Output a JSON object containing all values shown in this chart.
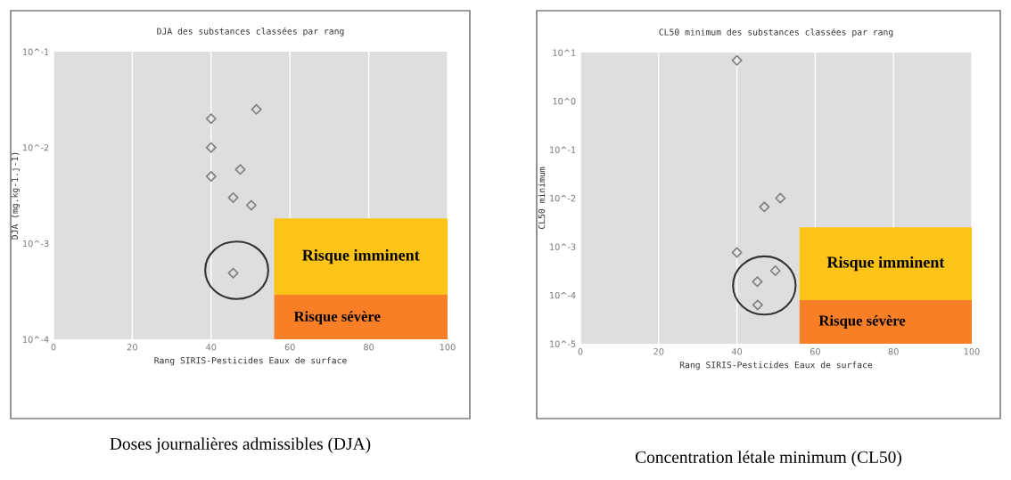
{
  "chart_data": [
    {
      "type": "scatter",
      "title": "DJA des substances classées par rang",
      "xlabel": "Rang SIRIS-Pesticides Eaux de surface",
      "ylabel": "DJA (mg.kg-1.j-1)",
      "series": [
        {
          "color": "#808080",
          "x": [
            40,
            51.5,
            40,
            40,
            47.4,
            45.6,
            50.2,
            45.6
          ],
          "values": [
            0.02,
            0.025,
            0.01,
            0.005,
            0.0059,
            0.003,
            0.0025,
            0.00049
          ]
        }
      ],
      "log": "y",
      "xlim": [
        0,
        100
      ],
      "xticks": [
        0,
        20,
        40,
        60,
        80,
        100
      ],
      "ylim": [
        0.0001,
        0.1
      ],
      "yticks": [
        {
          "value": 0.0001,
          "label": "10^-4"
        },
        {
          "value": 0.001,
          "label": "10^-3"
        },
        {
          "value": 0.01,
          "label": "10^-2"
        },
        {
          "value": 0.1,
          "label": "10^-1"
        }
      ],
      "grid": "x",
      "marker": "diamond",
      "annotations": [
        "Doses journalières admissibles (DJA)",
        "Risque imminent",
        "Risque sévère"
      ]
    },
    {
      "type": "scatter",
      "title": "CL50 minimum des substances classées par rang",
      "xlabel": "Rang SIRIS-Pesticides Eaux de surface",
      "ylabel": "CL50 minimum",
      "series": [
        {
          "color": "#808080",
          "x": [
            40,
            47,
            51.1,
            40,
            49.8,
            45.2,
            45.3
          ],
          "values": [
            6.9,
            0.0066,
            0.01,
            0.00076,
            0.00032,
            0.00019,
            6.3e-05
          ]
        }
      ],
      "log": "y",
      "xlim": [
        0,
        100
      ],
      "xticks": [
        0,
        20,
        40,
        60,
        80,
        100
      ],
      "ylim": [
        1e-05,
        10
      ],
      "yticks": [
        {
          "value": 1e-05,
          "label": "10^-5"
        },
        {
          "value": 0.0001,
          "label": "10^-4"
        },
        {
          "value": 0.001,
          "label": "10^-3"
        },
        {
          "value": 0.01,
          "label": "10^-2"
        },
        {
          "value": 0.1,
          "label": "10^-1"
        },
        {
          "value": 1,
          "label": "10^0"
        },
        {
          "value": 10,
          "label": "10^1"
        }
      ],
      "grid": "x",
      "marker": "diamond",
      "annotations": [
        "Concentration létale minimum (CL50)",
        "Risque imminent",
        "Risque sévère"
      ]
    }
  ]
}
